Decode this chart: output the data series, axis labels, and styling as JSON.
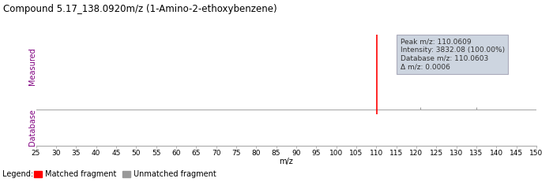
{
  "title": "Compound 5.17_138.0920m/z (1-Amino-2-ethoxybenzene)",
  "xlim": [
    25,
    150
  ],
  "xticks": [
    25,
    30,
    35,
    40,
    45,
    50,
    55,
    60,
    65,
    70,
    75,
    80,
    85,
    90,
    95,
    100,
    105,
    110,
    115,
    120,
    125,
    130,
    135,
    140,
    145,
    150
  ],
  "xlabel": "m/z",
  "measured_label": "Measured",
  "database_label": "Database",
  "matched_peak_mz": 110.0609,
  "matched_peak_intensity": 100.0,
  "db_peak_mz": 110.0603,
  "db_peak_intensity": 15.0,
  "small_peaks_mz": [
    121,
    135
  ],
  "small_peaks_intensity": [
    3,
    3
  ],
  "annotation_text": "Peak m/z: 110.0609\nIntensity: 3832.08 (100.00%)\nDatabase m/z: 110.0603\nΔ m/z: 0.0006",
  "matched_color": "#ff0000",
  "unmatched_color": "#999999",
  "annotation_bg": "#cdd5e0",
  "annotation_edge": "#aaaabb",
  "title_fontsize": 8.5,
  "axis_label_color": "#800080",
  "tick_fontsize": 6.5,
  "label_fontsize": 7,
  "legend_fontsize": 7,
  "annotation_fontsize": 6.5,
  "separator_color": "#aaaaaa",
  "background_color": "#ffffff"
}
